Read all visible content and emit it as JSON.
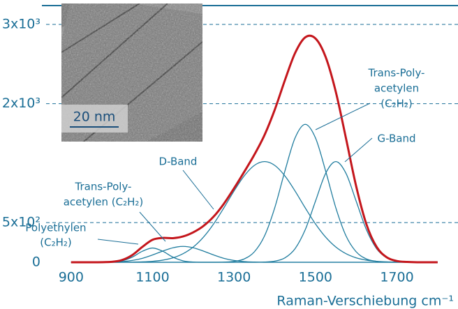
{
  "chart_data": {
    "type": "line",
    "x_label": "Raman-Verschiebung cm⁻¹",
    "x": [
      900,
      950,
      1000,
      1025,
      1050,
      1075,
      1100,
      1125,
      1150,
      1175,
      1200,
      1225,
      1250,
      1275,
      1300,
      1325,
      1350,
      1375,
      1400,
      1425,
      1450,
      1475,
      1500,
      1525,
      1550,
      1575,
      1600,
      1625,
      1650,
      1675,
      1700,
      1725,
      1750,
      1800
    ],
    "series": [
      {
        "color": "#1f7c9e",
        "values": [
          0,
          0,
          3,
          18,
          65,
          139,
          180,
          139,
          65,
          18,
          3,
          0,
          0,
          0,
          0,
          0,
          0,
          0,
          0,
          0,
          0,
          0,
          0,
          0,
          0,
          0,
          0,
          0,
          0,
          0,
          0,
          0,
          0,
          0
        ]
      },
      {
        "color": "#1f7c9e",
        "values": [
          0,
          0,
          3,
          9,
          23,
          50,
          92,
          141,
          183,
          200,
          183,
          141,
          92,
          50,
          23,
          9,
          3,
          0,
          0,
          0,
          0,
          0,
          0,
          0,
          0,
          0,
          0,
          0,
          0,
          0,
          0,
          0,
          0,
          0
        ]
      },
      {
        "color": "#1f7c9e",
        "values": [
          0,
          0,
          0,
          1,
          2,
          5,
          12,
          27,
          56,
          108,
          192,
          317,
          484,
          685,
          898,
          1089,
          1222,
          1270,
          1222,
          1089,
          898,
          685,
          484,
          317,
          192,
          108,
          56,
          27,
          12,
          5,
          2,
          1,
          0,
          0
        ]
      },
      {
        "color": "#1f7c9e",
        "values": [
          0,
          0,
          0,
          0,
          0,
          0,
          0,
          0,
          0,
          0,
          0,
          0,
          0,
          2,
          11,
          42,
          132,
          333,
          687,
          1151,
          1569,
          1740,
          1569,
          1151,
          687,
          333,
          132,
          42,
          11,
          2,
          0,
          0,
          0,
          0
        ]
      },
      {
        "color": "#1f7c9e",
        "values": [
          0,
          0,
          0,
          0,
          0,
          0,
          0,
          0,
          0,
          0,
          0,
          0,
          0,
          0,
          0,
          0,
          0,
          3,
          14,
          56,
          172,
          412,
          770,
          1121,
          1270,
          1121,
          770,
          412,
          172,
          56,
          14,
          3,
          0,
          0
        ]
      },
      {
        "color": "#c4161c",
        "values": [
          0,
          0,
          6,
          28,
          90,
          194,
          284,
          307,
          304,
          326,
          378,
          458,
          576,
          737,
          932,
          1140,
          1357,
          1606,
          1923,
          2296,
          2639,
          2837,
          2823,
          2589,
          2149,
          1562,
          958,
          481,
          195,
          63,
          16,
          4,
          0,
          0
        ]
      }
    ],
    "xlim": [
      830,
      1850
    ],
    "xticks": [
      900,
      1100,
      1300,
      1500,
      1700
    ],
    "ylim": [
      0,
      3000
    ],
    "yticks": [
      0,
      {
        "value": 500,
        "label": "5x10²"
      },
      {
        "value": 2000,
        "label": "2x10³"
      },
      {
        "value": 3000,
        "label": "3x10³"
      }
    ],
    "grid": true,
    "annotations": [
      {
        "lines": [
          "Trans-Poly-",
          "acetylen",
          "(C₂H₂)"
        ]
      },
      {
        "lines": [
          "G-Band"
        ]
      },
      {
        "lines": [
          "D-Band"
        ]
      },
      {
        "lines": [
          "Trans-Poly-",
          "acetylen (C₂H₂)"
        ]
      },
      {
        "lines": [
          "Polyethylen",
          "(C₂H₂)"
        ]
      }
    ]
  },
  "inset": {
    "scale_label": "20 nm"
  }
}
